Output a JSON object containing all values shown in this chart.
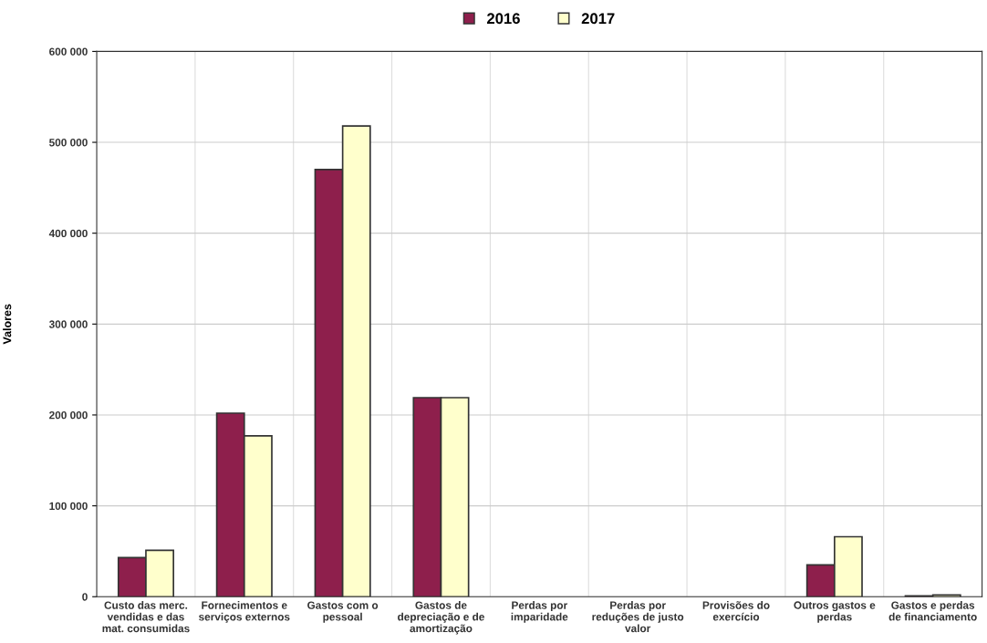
{
  "chart_data": {
    "type": "bar",
    "ylabel": "Valores",
    "categories": [
      "Custo das merc. vendidas e das mat. consumidas",
      "Fornecimentos e serviços externos",
      "Gastos com o pessoal",
      "Gastos de depreciação e de amortização",
      "Perdas por imparidade",
      "Perdas por reduções de justo valor",
      "Provisões do exercício",
      "Outros gastos e perdas",
      "Gastos e perdas de financiamento"
    ],
    "series": [
      {
        "name": "2016",
        "color": "#8e1f4c",
        "values": [
          43000,
          202000,
          470000,
          219000,
          0,
          0,
          0,
          35000,
          1000
        ]
      },
      {
        "name": "2017",
        "color": "#ffffcc",
        "values": [
          51000,
          177000,
          518000,
          219000,
          0,
          0,
          0,
          66000,
          2000
        ]
      }
    ],
    "ylim": [
      0,
      600000
    ],
    "yticks": [
      0,
      {
        "value": 100000,
        "label": "100 000"
      },
      {
        "value": 200000,
        "label": "200 000"
      },
      {
        "value": 300000,
        "label": "300 000"
      },
      {
        "value": 400000,
        "label": "400 000"
      },
      {
        "value": 500000,
        "label": "500 000"
      },
      {
        "value": 600000,
        "label": "600 000"
      }
    ],
    "grid": true,
    "legend": "top"
  }
}
